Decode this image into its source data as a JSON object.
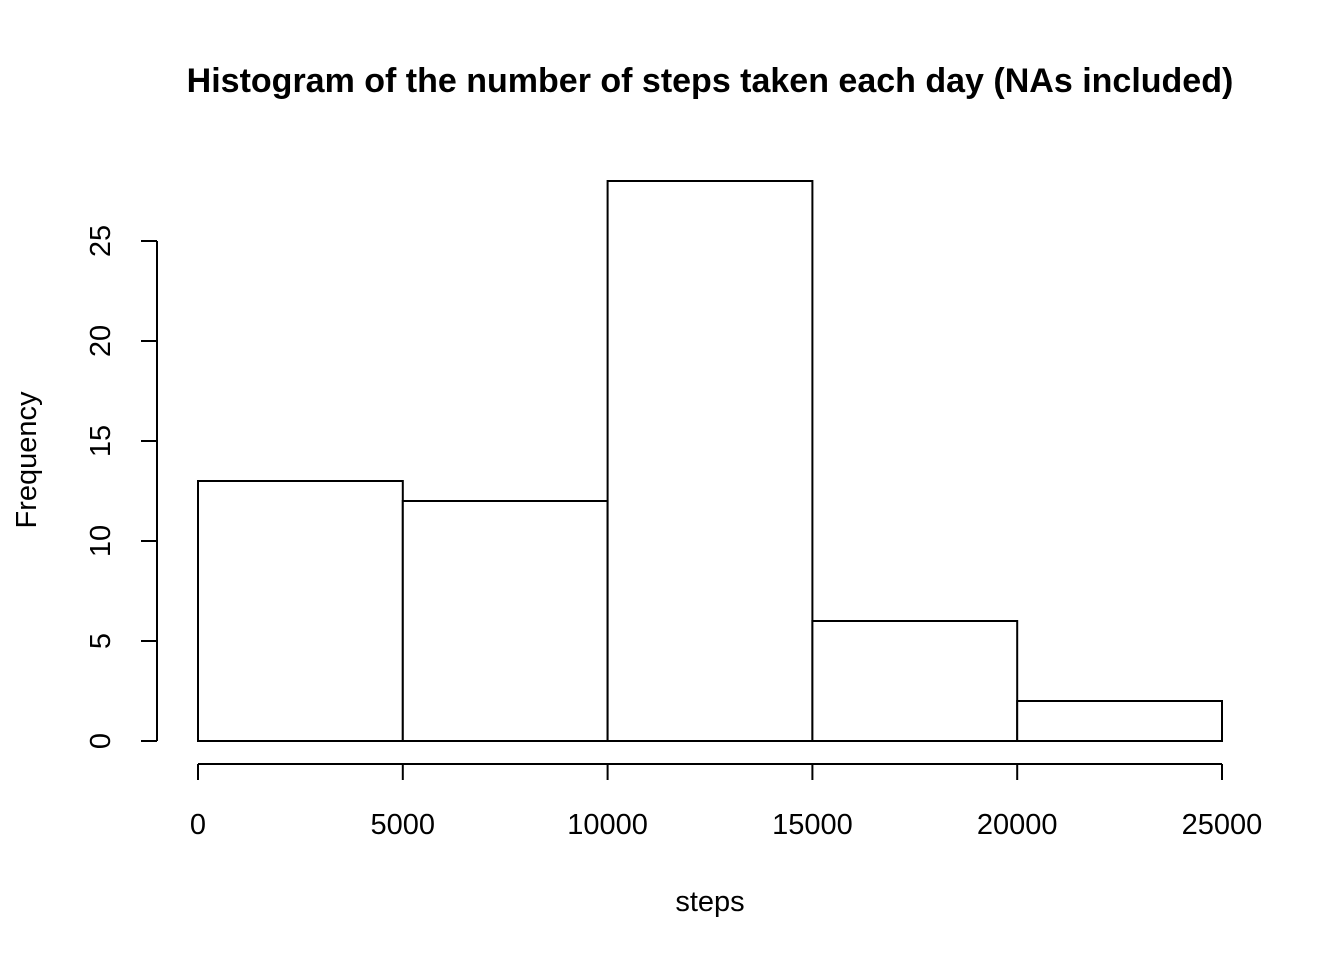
{
  "chart_data": {
    "type": "bar",
    "title": "Histogram of the number of steps taken each day (NAs included)",
    "xlabel": "steps",
    "ylabel": "Frequency",
    "bins": [
      {
        "from": 0,
        "to": 5000,
        "count": 13
      },
      {
        "from": 5000,
        "to": 10000,
        "count": 12
      },
      {
        "from": 10000,
        "to": 15000,
        "count": 28
      },
      {
        "from": 15000,
        "to": 20000,
        "count": 6
      },
      {
        "from": 20000,
        "to": 25000,
        "count": 2
      }
    ],
    "xlim": [
      0,
      25000
    ],
    "ylim": [
      0,
      28
    ],
    "x_ticks": [
      0,
      5000,
      10000,
      15000,
      20000,
      25000
    ],
    "x_tick_labels": [
      "0",
      "5000",
      "10000",
      "15000",
      "20000",
      "25000"
    ],
    "y_ticks": [
      0,
      5,
      10,
      15,
      20,
      25
    ],
    "y_tick_labels": [
      "0",
      "5",
      "10",
      "15",
      "20",
      "25"
    ],
    "grid": false,
    "bar_fill": "#ffffff",
    "bar_stroke": "#000000"
  }
}
